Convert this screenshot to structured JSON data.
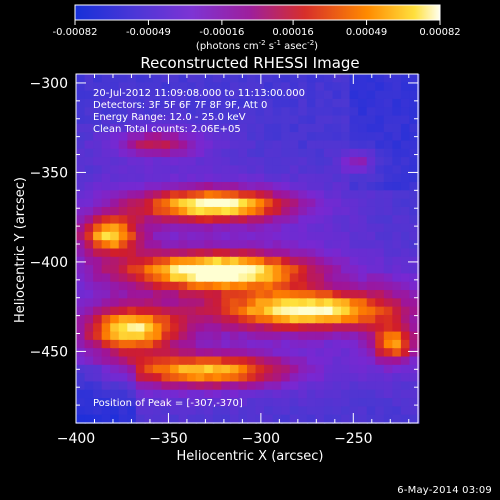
{
  "chart_data": {
    "type": "heatmap",
    "title": "Reconstructed RHESSI Image",
    "xlabel": "Heliocentric X (arcsec)",
    "ylabel": "Heliocentric Y (arcsec)",
    "x_ticks": [
      -400,
      -350,
      -300,
      -250
    ],
    "y_ticks": [
      -300,
      -350,
      -400,
      -450
    ],
    "xlim": [
      -400,
      -215
    ],
    "ylim": [
      -490,
      -295
    ],
    "colorbar": {
      "ticks": [
        -0.00082,
        -0.00049,
        -0.00016,
        0.00016,
        0.00049,
        0.00082
      ],
      "tick_labels": [
        "-0.00082",
        "-0.00049",
        "-0.00016",
        "0.00016",
        "0.00049",
        "0.00082"
      ],
      "label_parts": [
        "(photons cm",
        "-2",
        " s",
        "-1",
        " asec",
        "-2",
        ")"
      ],
      "range": [
        -0.00082,
        0.00082
      ]
    },
    "annotations": [
      "20-Jul-2012 11:09:08.000 to 11:13:00.000",
      "Detectors: 3F 5F 6F 7F 8F 9F, Att 0",
      "Energy Range: 12.0 - 25.0 keV",
      "Clean     Total counts: 2.06E+05",
      "Position of Peak = [-307,-370]"
    ],
    "features": [
      {
        "name": "top-arc",
        "center": [
          -325,
          -368
        ],
        "radius": [
          42,
          9
        ],
        "amp": 0.95
      },
      {
        "name": "left-arc",
        "center": [
          -382,
          -385
        ],
        "radius": [
          16,
          10
        ],
        "amp": 0.75
      },
      {
        "name": "mid-arc",
        "center": [
          -323,
          -405
        ],
        "radius": [
          48,
          10
        ],
        "amp": 0.98
      },
      {
        "name": "lower-arc",
        "center": [
          -274,
          -427
        ],
        "radius": [
          50,
          11
        ],
        "amp": 0.9
      },
      {
        "name": "left-lower-blob",
        "center": [
          -371,
          -438
        ],
        "radius": [
          25,
          12
        ],
        "amp": 0.82
      },
      {
        "name": "bottom-arc",
        "center": [
          -329,
          -461
        ],
        "radius": [
          45,
          9
        ],
        "amp": 0.78
      },
      {
        "name": "right-patch",
        "center": [
          -228,
          -446
        ],
        "radius": [
          12,
          10
        ],
        "amp": 0.66
      },
      {
        "name": "upper-left-streak",
        "center": [
          -356,
          -334
        ],
        "radius": [
          24,
          7
        ],
        "amp": 0.48
      },
      {
        "name": "right-top-patch",
        "center": [
          -247,
          -344
        ],
        "radius": [
          8,
          6
        ],
        "amp": 0.35
      }
    ],
    "grid": false,
    "legend": "colorbar-top"
  },
  "timestamp": "6-May-2014 03:09"
}
